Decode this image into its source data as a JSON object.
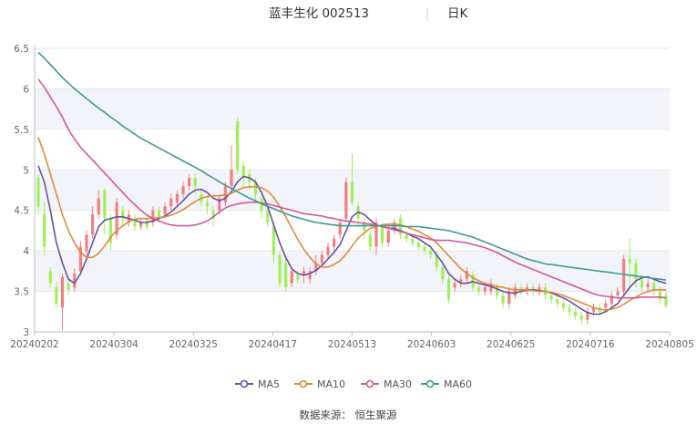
{
  "header": {
    "title": "蓝丰生化 002513",
    "period": "日K"
  },
  "footer": {
    "source": "数据来源： 恒生聚源"
  },
  "colors": {
    "up": "#f08080",
    "down": "#9ff05a",
    "band": "#f3f4f9",
    "grid": "#e6e6e6",
    "axis": "#bdbdbd"
  },
  "chart_data": {
    "type": "candlestick",
    "title": "蓝丰生化 002513",
    "subtitle": "日K",
    "ylim": [
      3,
      6.5
    ],
    "yticks": [
      3,
      3.5,
      4,
      4.5,
      5,
      5.5,
      6,
      6.5
    ],
    "xticks": [
      "20240202",
      "20240304",
      "20240325",
      "20240417",
      "20240513",
      "20240603",
      "20240625",
      "20240716",
      "20240805"
    ],
    "xtick_index": [
      0,
      13,
      26,
      39,
      52,
      65,
      78,
      91,
      104
    ],
    "n": 105,
    "legend": [
      {
        "name": "MA5",
        "color": "#6a4fa3"
      },
      {
        "name": "MA10",
        "color": "#e08a3c"
      },
      {
        "name": "MA30",
        "color": "#d6569e"
      },
      {
        "name": "MA60",
        "color": "#3e9a96"
      }
    ],
    "candles": [
      [
        4.9,
        4.55,
        4.95,
        4.45
      ],
      [
        4.45,
        4.05,
        4.6,
        3.95
      ],
      [
        3.75,
        3.6,
        3.8,
        3.55
      ],
      [
        3.55,
        3.35,
        3.62,
        3.3
      ],
      [
        3.3,
        3.68,
        3.72,
        3.02
      ],
      [
        3.6,
        3.52,
        3.65,
        3.46
      ],
      [
        3.55,
        3.72,
        3.78,
        3.5
      ],
      [
        3.75,
        4.05,
        4.12,
        3.7
      ],
      [
        4.0,
        4.2,
        4.25,
        3.95
      ],
      [
        4.2,
        4.45,
        4.55,
        4.15
      ],
      [
        4.45,
        4.65,
        4.75,
        4.4
      ],
      [
        4.75,
        4.4,
        4.78,
        4.2
      ],
      [
        4.4,
        4.1,
        4.45,
        4.0
      ],
      [
        4.2,
        4.6,
        4.65,
        4.15
      ],
      [
        4.5,
        4.4,
        4.55,
        4.3
      ],
      [
        4.35,
        4.45,
        4.5,
        4.3
      ],
      [
        4.4,
        4.3,
        4.45,
        4.25
      ],
      [
        4.3,
        4.35,
        4.4,
        4.25
      ],
      [
        4.4,
        4.3,
        4.45,
        4.25
      ],
      [
        4.35,
        4.5,
        4.55,
        4.3
      ],
      [
        4.5,
        4.4,
        4.55,
        4.35
      ],
      [
        4.45,
        4.55,
        4.6,
        4.4
      ],
      [
        4.55,
        4.65,
        4.7,
        4.5
      ],
      [
        4.6,
        4.7,
        4.75,
        4.55
      ],
      [
        4.7,
        4.8,
        4.85,
        4.65
      ],
      [
        4.8,
        4.9,
        4.95,
        4.75
      ],
      [
        4.9,
        4.8,
        4.95,
        4.7
      ],
      [
        4.7,
        4.6,
        4.75,
        4.55
      ],
      [
        4.6,
        4.55,
        4.65,
        4.45
      ],
      [
        4.5,
        4.4,
        4.55,
        4.3
      ],
      [
        4.5,
        4.65,
        4.7,
        4.45
      ],
      [
        4.6,
        4.8,
        4.85,
        4.55
      ],
      [
        4.8,
        5.0,
        5.3,
        4.75
      ],
      [
        5.6,
        5.0,
        5.65,
        4.95
      ],
      [
        5.05,
        4.9,
        5.1,
        4.8
      ],
      [
        4.95,
        4.85,
        5.0,
        4.75
      ],
      [
        4.85,
        4.7,
        4.9,
        4.6
      ],
      [
        4.65,
        4.5,
        4.7,
        4.4
      ],
      [
        4.5,
        4.35,
        4.55,
        4.3
      ],
      [
        4.3,
        3.95,
        4.35,
        3.85
      ],
      [
        3.95,
        3.6,
        4.0,
        3.55
      ],
      [
        3.85,
        3.55,
        3.9,
        3.5
      ],
      [
        3.6,
        3.75,
        3.8,
        3.55
      ],
      [
        3.7,
        3.65,
        3.75,
        3.6
      ],
      [
        3.7,
        3.75,
        3.8,
        3.6
      ],
      [
        3.65,
        3.75,
        3.8,
        3.6
      ],
      [
        3.75,
        3.85,
        3.95,
        3.7
      ],
      [
        3.85,
        3.95,
        4.0,
        3.8
      ],
      [
        3.95,
        4.05,
        4.1,
        3.9
      ],
      [
        4.05,
        4.15,
        4.2,
        4.0
      ],
      [
        4.2,
        4.35,
        4.4,
        4.15
      ],
      [
        4.4,
        4.85,
        4.9,
        4.35
      ],
      [
        4.85,
        4.6,
        5.2,
        4.55
      ],
      [
        4.55,
        4.4,
        4.6,
        4.3
      ],
      [
        4.35,
        4.25,
        4.4,
        4.15
      ],
      [
        4.2,
        4.05,
        4.25,
        4.0
      ],
      [
        4.05,
        4.35,
        4.4,
        3.95
      ],
      [
        4.3,
        4.1,
        4.35,
        4.05
      ],
      [
        4.1,
        4.25,
        4.3,
        4.05
      ],
      [
        4.25,
        4.35,
        4.4,
        4.2
      ],
      [
        4.4,
        4.2,
        4.45,
        4.15
      ],
      [
        4.2,
        4.15,
        4.25,
        4.1
      ],
      [
        4.15,
        4.1,
        4.2,
        4.05
      ],
      [
        4.1,
        4.05,
        4.15,
        4.0
      ],
      [
        4.05,
        4.0,
        4.1,
        3.95
      ],
      [
        4.0,
        3.95,
        4.05,
        3.9
      ],
      [
        3.95,
        3.8,
        4.0,
        3.75
      ],
      [
        3.8,
        3.65,
        3.85,
        3.6
      ],
      [
        3.65,
        3.4,
        3.7,
        3.35
      ],
      [
        3.55,
        3.6,
        3.65,
        3.5
      ],
      [
        3.6,
        3.65,
        3.7,
        3.55
      ],
      [
        3.65,
        3.75,
        3.8,
        3.6
      ],
      [
        3.7,
        3.55,
        3.75,
        3.5
      ],
      [
        3.55,
        3.5,
        3.6,
        3.45
      ],
      [
        3.5,
        3.55,
        3.6,
        3.45
      ],
      [
        3.5,
        3.6,
        3.65,
        3.45
      ],
      [
        3.55,
        3.45,
        3.6,
        3.4
      ],
      [
        3.45,
        3.35,
        3.5,
        3.3
      ],
      [
        3.35,
        3.5,
        3.55,
        3.3
      ],
      [
        3.45,
        3.55,
        3.6,
        3.4
      ],
      [
        3.55,
        3.5,
        3.6,
        3.45
      ],
      [
        3.5,
        3.55,
        3.6,
        3.45
      ],
      [
        3.55,
        3.5,
        3.6,
        3.45
      ],
      [
        3.5,
        3.55,
        3.6,
        3.45
      ],
      [
        3.55,
        3.45,
        3.6,
        3.4
      ],
      [
        3.45,
        3.4,
        3.5,
        3.35
      ],
      [
        3.4,
        3.35,
        3.45,
        3.3
      ],
      [
        3.35,
        3.3,
        3.4,
        3.25
      ],
      [
        3.3,
        3.25,
        3.35,
        3.2
      ],
      [
        3.25,
        3.2,
        3.3,
        3.15
      ],
      [
        3.2,
        3.15,
        3.25,
        3.1
      ],
      [
        3.15,
        3.25,
        3.3,
        3.1
      ],
      [
        3.25,
        3.3,
        3.35,
        3.2
      ],
      [
        3.3,
        3.25,
        3.35,
        3.2
      ],
      [
        3.3,
        3.35,
        3.4,
        3.25
      ],
      [
        3.35,
        3.45,
        3.5,
        3.3
      ],
      [
        3.45,
        3.5,
        3.55,
        3.4
      ],
      [
        3.5,
        3.9,
        3.95,
        3.45
      ],
      [
        3.9,
        3.85,
        4.15,
        3.5
      ],
      [
        3.85,
        3.65,
        3.9,
        3.55
      ],
      [
        3.65,
        3.55,
        3.7,
        3.5
      ],
      [
        3.55,
        3.6,
        3.65,
        3.5
      ],
      [
        3.6,
        3.5,
        3.65,
        3.45
      ],
      [
        3.5,
        3.4,
        3.55,
        3.35
      ],
      [
        3.45,
        3.32,
        3.5,
        3.3
      ]
    ],
    "ma5": [
      5.05,
      4.85,
      4.5,
      4.1,
      3.85,
      3.65,
      3.6,
      3.72,
      3.9,
      4.1,
      4.3,
      4.38,
      4.4,
      4.42,
      4.42,
      4.4,
      4.38,
      4.35,
      4.35,
      4.37,
      4.4,
      4.43,
      4.48,
      4.55,
      4.62,
      4.7,
      4.75,
      4.76,
      4.72,
      4.65,
      4.62,
      4.65,
      4.73,
      4.85,
      4.92,
      4.9,
      4.85,
      4.72,
      4.55,
      4.32,
      4.1,
      3.92,
      3.78,
      3.72,
      3.7,
      3.72,
      3.76,
      3.82,
      3.9,
      3.98,
      4.08,
      4.25,
      4.42,
      4.48,
      4.45,
      4.38,
      4.32,
      4.3,
      4.28,
      4.28,
      4.25,
      4.22,
      4.18,
      4.15,
      4.1,
      4.05,
      3.95,
      3.85,
      3.72,
      3.65,
      3.6,
      3.6,
      3.62,
      3.6,
      3.58,
      3.56,
      3.53,
      3.5,
      3.48,
      3.48,
      3.5,
      3.52,
      3.52,
      3.51,
      3.5,
      3.48,
      3.45,
      3.42,
      3.38,
      3.33,
      3.28,
      3.24,
      3.22,
      3.22,
      3.25,
      3.3,
      3.35,
      3.45,
      3.55,
      3.63,
      3.67,
      3.68,
      3.65,
      3.62,
      3.6
    ],
    "ma10": [
      5.4,
      5.2,
      4.95,
      4.7,
      4.45,
      4.25,
      4.1,
      3.98,
      3.92,
      3.92,
      3.97,
      4.06,
      4.17,
      4.25,
      4.31,
      4.36,
      4.39,
      4.4,
      4.4,
      4.4,
      4.41,
      4.42,
      4.44,
      4.47,
      4.51,
      4.56,
      4.61,
      4.65,
      4.67,
      4.68,
      4.68,
      4.69,
      4.71,
      4.75,
      4.78,
      4.79,
      4.79,
      4.78,
      4.74,
      4.66,
      4.55,
      4.42,
      4.28,
      4.14,
      4.02,
      3.92,
      3.84,
      3.8,
      3.8,
      3.83,
      3.88,
      3.96,
      4.06,
      4.16,
      4.22,
      4.28,
      4.3,
      4.32,
      4.33,
      4.33,
      4.32,
      4.3,
      4.27,
      4.24,
      4.2,
      4.16,
      4.1,
      4.02,
      3.94,
      3.86,
      3.78,
      3.72,
      3.67,
      3.63,
      3.6,
      3.58,
      3.56,
      3.55,
      3.53,
      3.52,
      3.52,
      3.52,
      3.51,
      3.5,
      3.5,
      3.49,
      3.47,
      3.45,
      3.42,
      3.39,
      3.36,
      3.33,
      3.3,
      3.28,
      3.27,
      3.28,
      3.3,
      3.34,
      3.39,
      3.43,
      3.47,
      3.5,
      3.52,
      3.52,
      3.52
    ],
    "ma30": [
      6.12,
      6.02,
      5.9,
      5.78,
      5.65,
      5.5,
      5.38,
      5.28,
      5.2,
      5.12,
      5.04,
      4.96,
      4.88,
      4.8,
      4.72,
      4.64,
      4.57,
      4.5,
      4.44,
      4.4,
      4.37,
      4.34,
      4.32,
      4.31,
      4.31,
      4.31,
      4.32,
      4.34,
      4.37,
      4.42,
      4.48,
      4.53,
      4.56,
      4.58,
      4.59,
      4.6,
      4.6,
      4.59,
      4.58,
      4.56,
      4.54,
      4.52,
      4.5,
      4.48,
      4.46,
      4.45,
      4.44,
      4.43,
      4.41,
      4.4,
      4.38,
      4.37,
      4.36,
      4.35,
      4.34,
      4.33,
      4.32,
      4.3,
      4.28,
      4.26,
      4.24,
      4.22,
      4.2,
      4.18,
      4.16,
      4.14,
      4.13,
      4.13,
      4.13,
      4.12,
      4.11,
      4.1,
      4.08,
      4.06,
      4.04,
      4.01,
      3.98,
      3.94,
      3.9,
      3.86,
      3.83,
      3.8,
      3.77,
      3.74,
      3.71,
      3.68,
      3.65,
      3.62,
      3.59,
      3.56,
      3.53,
      3.5,
      3.47,
      3.45,
      3.44,
      3.43,
      3.42,
      3.42,
      3.42,
      3.42,
      3.43,
      3.43,
      3.43,
      3.43,
      3.42
    ],
    "ma60": [
      6.45,
      6.38,
      6.3,
      6.22,
      6.14,
      6.07,
      6.0,
      5.94,
      5.88,
      5.82,
      5.76,
      5.71,
      5.65,
      5.6,
      5.54,
      5.49,
      5.44,
      5.39,
      5.35,
      5.31,
      5.27,
      5.23,
      5.19,
      5.15,
      5.11,
      5.07,
      5.03,
      4.99,
      4.94,
      4.9,
      4.85,
      4.81,
      4.77,
      4.73,
      4.69,
      4.65,
      4.62,
      4.58,
      4.55,
      4.52,
      4.49,
      4.46,
      4.43,
      4.41,
      4.39,
      4.37,
      4.35,
      4.34,
      4.33,
      4.32,
      4.31,
      4.31,
      4.31,
      4.31,
      4.31,
      4.31,
      4.31,
      4.31,
      4.31,
      4.31,
      4.31,
      4.3,
      4.3,
      4.3,
      4.29,
      4.28,
      4.27,
      4.26,
      4.25,
      4.23,
      4.21,
      4.19,
      4.17,
      4.14,
      4.11,
      4.08,
      4.05,
      4.02,
      3.99,
      3.96,
      3.93,
      3.9,
      3.88,
      3.86,
      3.84,
      3.83,
      3.82,
      3.81,
      3.8,
      3.79,
      3.78,
      3.77,
      3.76,
      3.75,
      3.74,
      3.73,
      3.72,
      3.71,
      3.7,
      3.69,
      3.68,
      3.67,
      3.66,
      3.65,
      3.64
    ]
  }
}
